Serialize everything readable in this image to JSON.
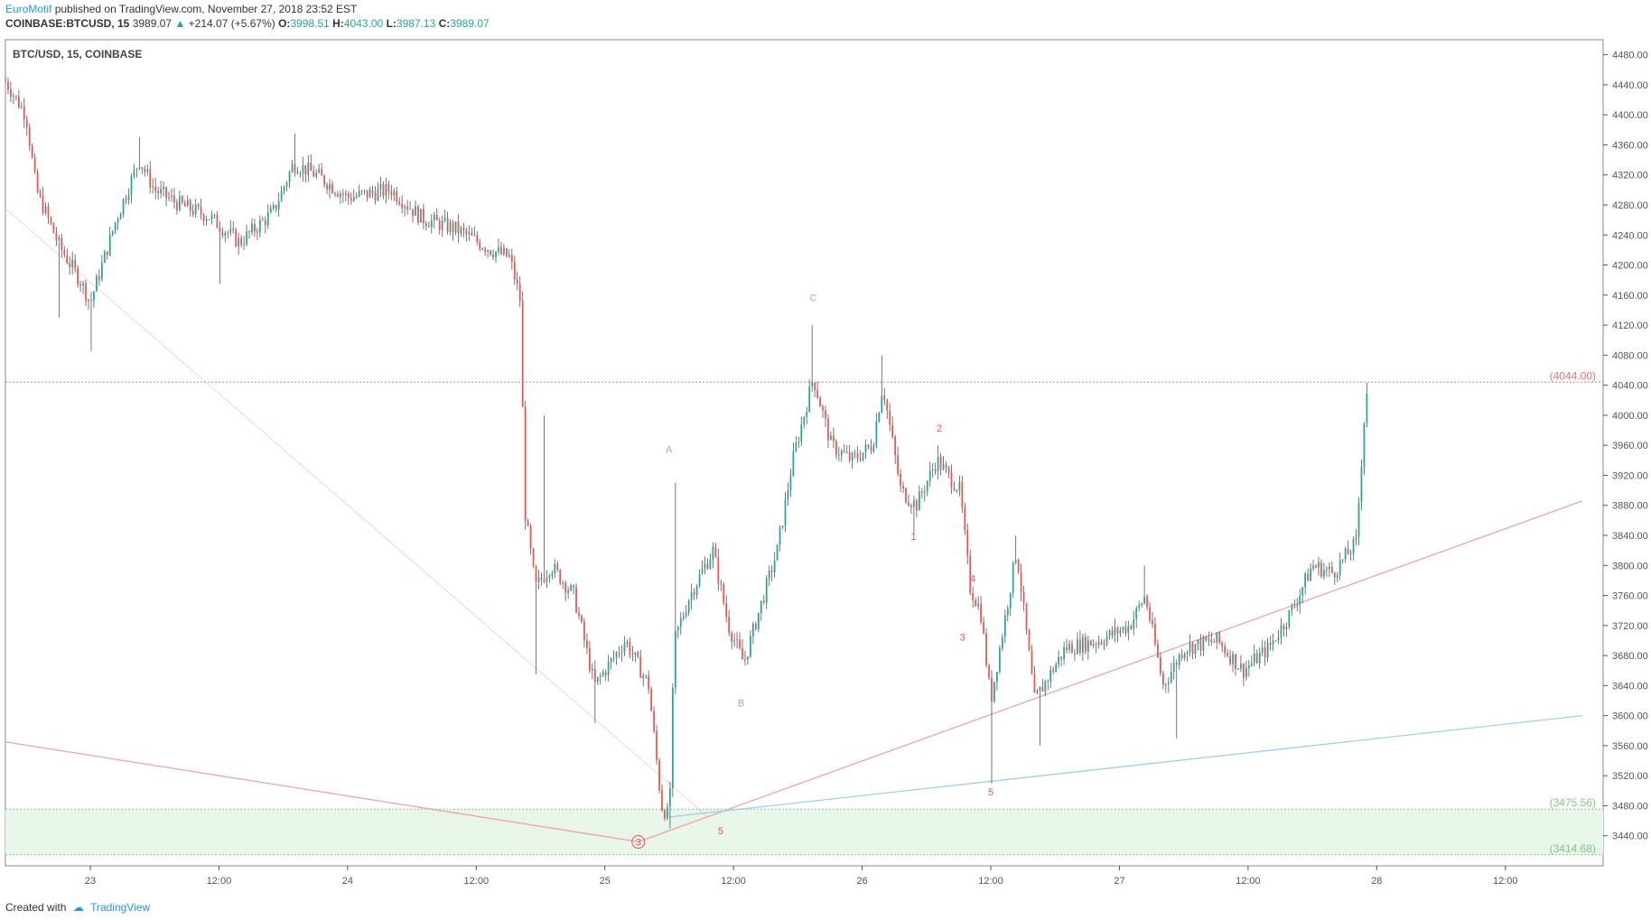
{
  "header": {
    "author": "EuroMotif",
    "published_text": "published on TradingView.com, November 27, 2018 23:52 EST",
    "symbol": "COINBASE:BTCUSD, 15",
    "last": "3989.07",
    "change": "+214.07 (+5.67%)",
    "o_label": "O:",
    "o_value": "3998.51",
    "h_label": "H:",
    "h_value": "4043.00",
    "l_label": "L:",
    "l_value": "3987.13",
    "c_label": "C:",
    "c_value": "3989.07"
  },
  "footer": {
    "created_with": "Created with",
    "brand": "TradingView"
  },
  "chart_data": {
    "type": "candlestick",
    "title": "BTC/USD, 15, COINBASE",
    "ylim": [
      3400,
      4500
    ],
    "y_ticks": [
      "4480.00",
      "4440.00",
      "4400.00",
      "4360.00",
      "4320.00",
      "4280.00",
      "4240.00",
      "4200.00",
      "4160.00",
      "4120.00",
      "4080.00",
      "4040.00",
      "4000.00",
      "3960.00",
      "3920.00",
      "3880.00",
      "3840.00",
      "3800.00",
      "3760.00",
      "3720.00",
      "3680.00",
      "3640.00",
      "3600.00",
      "3560.00",
      "3520.00",
      "3480.00",
      "3440.00"
    ],
    "x_ticks": [
      "23",
      "12:00",
      "24",
      "12:00",
      "25",
      "12:00",
      "26",
      "12:00",
      "27",
      "12:00",
      "28",
      "12:00"
    ],
    "price_path": [
      {
        "day": 22.67,
        "price": 4445
      },
      {
        "day": 22.75,
        "price": 4400
      },
      {
        "day": 22.79,
        "price": 4300
      },
      {
        "day": 22.88,
        "price": 4225
      },
      {
        "day": 22.96,
        "price": 4180
      },
      {
        "day": 23.0,
        "price": 4150
      },
      {
        "day": 23.1,
        "price": 4260
      },
      {
        "day": 23.19,
        "price": 4340
      },
      {
        "day": 23.25,
        "price": 4300
      },
      {
        "day": 23.35,
        "price": 4280
      },
      {
        "day": 23.46,
        "price": 4265
      },
      {
        "day": 23.58,
        "price": 4230
      },
      {
        "day": 23.71,
        "price": 4270
      },
      {
        "day": 23.79,
        "price": 4335
      },
      {
        "day": 23.88,
        "price": 4320
      },
      {
        "day": 24.0,
        "price": 4290
      },
      {
        "day": 24.17,
        "price": 4300
      },
      {
        "day": 24.29,
        "price": 4262
      },
      {
        "day": 24.42,
        "price": 4248
      },
      {
        "day": 24.56,
        "price": 4220
      },
      {
        "day": 24.63,
        "price": 4210
      },
      {
        "day": 24.67,
        "price": 4155
      },
      {
        "day": 24.69,
        "price": 3870
      },
      {
        "day": 24.73,
        "price": 3770
      },
      {
        "day": 24.79,
        "price": 3800
      },
      {
        "day": 24.88,
        "price": 3760
      },
      {
        "day": 24.96,
        "price": 3640
      },
      {
        "day": 25.08,
        "price": 3700
      },
      {
        "day": 25.17,
        "price": 3640
      },
      {
        "day": 25.22,
        "price": 3480
      },
      {
        "day": 25.25,
        "price": 3465
      },
      {
        "day": 25.27,
        "price": 3700
      },
      {
        "day": 25.33,
        "price": 3760
      },
      {
        "day": 25.42,
        "price": 3820
      },
      {
        "day": 25.48,
        "price": 3720
      },
      {
        "day": 25.54,
        "price": 3670
      },
      {
        "day": 25.6,
        "price": 3740
      },
      {
        "day": 25.67,
        "price": 3820
      },
      {
        "day": 25.73,
        "price": 3940
      },
      {
        "day": 25.81,
        "price": 4050
      },
      {
        "day": 25.88,
        "price": 3960
      },
      {
        "day": 25.96,
        "price": 3940
      },
      {
        "day": 26.04,
        "price": 3960
      },
      {
        "day": 26.08,
        "price": 4040
      },
      {
        "day": 26.15,
        "price": 3900
      },
      {
        "day": 26.21,
        "price": 3880
      },
      {
        "day": 26.29,
        "price": 3940
      },
      {
        "day": 26.38,
        "price": 3900
      },
      {
        "day": 26.42,
        "price": 3770
      },
      {
        "day": 26.46,
        "price": 3740
      },
      {
        "day": 26.5,
        "price": 3620
      },
      {
        "day": 26.54,
        "price": 3700
      },
      {
        "day": 26.6,
        "price": 3820
      },
      {
        "day": 26.67,
        "price": 3620
      },
      {
        "day": 26.79,
        "price": 3690
      },
      {
        "day": 26.92,
        "price": 3700
      },
      {
        "day": 27.04,
        "price": 3720
      },
      {
        "day": 27.1,
        "price": 3760
      },
      {
        "day": 27.17,
        "price": 3640
      },
      {
        "day": 27.25,
        "price": 3690
      },
      {
        "day": 27.38,
        "price": 3700
      },
      {
        "day": 27.48,
        "price": 3660
      },
      {
        "day": 27.58,
        "price": 3690
      },
      {
        "day": 27.67,
        "price": 3740
      },
      {
        "day": 27.75,
        "price": 3800
      },
      {
        "day": 27.83,
        "price": 3790
      },
      {
        "day": 27.92,
        "price": 3830
      },
      {
        "day": 27.96,
        "price": 4040
      },
      {
        "day": 27.97,
        "price": 3989
      }
    ],
    "wicks": [
      {
        "day": 22.88,
        "low": 4130
      },
      {
        "day": 23.0,
        "low": 4085
      },
      {
        "day": 23.19,
        "high": 4370
      },
      {
        "day": 23.79,
        "high": 4375
      },
      {
        "day": 23.5,
        "low": 4175
      },
      {
        "day": 24.76,
        "high": 4000
      },
      {
        "day": 24.73,
        "low": 3655
      },
      {
        "day": 24.96,
        "low": 3590
      },
      {
        "day": 25.25,
        "low": 3450
      },
      {
        "day": 25.27,
        "high": 3910
      },
      {
        "day": 25.81,
        "high": 4120
      },
      {
        "day": 26.08,
        "high": 4080
      },
      {
        "day": 26.2,
        "low": 3840
      },
      {
        "day": 26.3,
        "high": 3960
      },
      {
        "day": 26.5,
        "low": 3510
      },
      {
        "day": 26.6,
        "high": 3840
      },
      {
        "day": 26.69,
        "low": 3560
      },
      {
        "day": 27.1,
        "high": 3800
      },
      {
        "day": 27.22,
        "low": 3570
      },
      {
        "day": 27.96,
        "high": 4043
      }
    ],
    "levels": [
      {
        "label": "(4044.00)",
        "price": 4044.0,
        "color": "#e57373"
      },
      {
        "label": "(3475.56)",
        "price": 3475.56,
        "color": "#81c784"
      },
      {
        "label": "(3414.68)",
        "price": 3414.68,
        "color": "#81c784"
      }
    ],
    "wave_labels": [
      {
        "text": "C",
        "day": 25.81,
        "price": 4152,
        "color": "#81c784"
      },
      {
        "text": "A",
        "day": 25.25,
        "price": 3950,
        "color": "#81c784"
      },
      {
        "text": "B",
        "day": 25.53,
        "price": 3612,
        "color": "#81c784"
      },
      {
        "text": "2",
        "day": 26.3,
        "price": 3978,
        "color": "#ef5350"
      },
      {
        "text": "1",
        "day": 26.2,
        "price": 3834,
        "color": "#ef5350"
      },
      {
        "text": "4",
        "day": 26.43,
        "price": 3778,
        "color": "#ef5350"
      },
      {
        "text": "3",
        "day": 26.39,
        "price": 3700,
        "color": "#ef5350"
      },
      {
        "text": "5",
        "day": 26.5,
        "price": 3494,
        "color": "#ef5350"
      },
      {
        "text": "5",
        "day": 25.45,
        "price": 3442,
        "color": "#ef5350"
      },
      {
        "text": "3",
        "day": 25.13,
        "price": 3427,
        "color": "#ef5350",
        "circled": true
      }
    ],
    "trendlines": [
      {
        "from": {
          "day": 22.67,
          "price": 3565
        },
        "to": {
          "day": 25.13,
          "price": 3432
        },
        "color": "#ef9a9a"
      },
      {
        "from": {
          "day": 25.13,
          "price": 3432
        },
        "to": {
          "day": 28.8,
          "price": 3886
        },
        "color": "#ef9a9a"
      },
      {
        "from": {
          "day": 22.67,
          "price": 4275
        },
        "to": {
          "day": 25.4,
          "price": 3465
        },
        "color": "#ef9a9a",
        "faint": true
      },
      {
        "from": {
          "day": 25.25,
          "price": 3465
        },
        "to": {
          "day": 28.8,
          "price": 3600
        },
        "color": "#90caf9"
      }
    ],
    "zone": {
      "top": 3475.56,
      "bottom": 3414.68,
      "color": "#e8f5e9"
    },
    "colors": {
      "up": "#26a69a",
      "down": "#ef5350",
      "axis": "#555555",
      "grid": "none"
    }
  }
}
